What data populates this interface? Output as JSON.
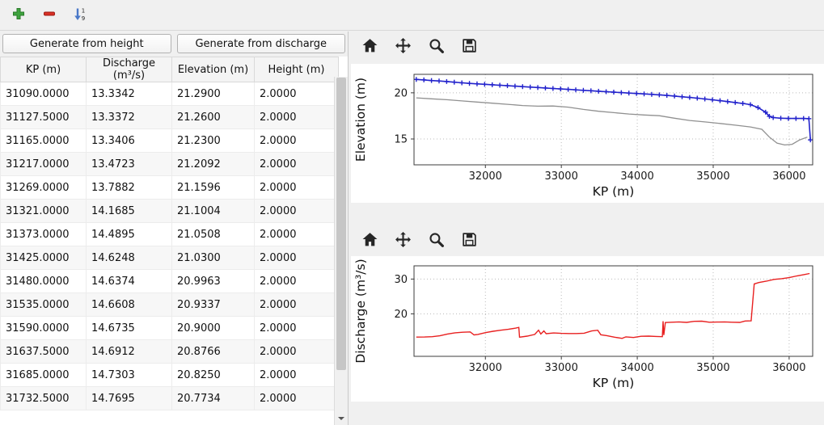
{
  "colors": {
    "window_bg": "#f0f0f0",
    "accent_blue": "#2323cc",
    "line_gray": "#909090",
    "line_red": "#e82020",
    "toolbar_icon": "#262626",
    "plus_green": "#3fa33f",
    "minus_red": "#d93025",
    "sort_blue": "#4a78c8"
  },
  "main_toolbar": {
    "buttons": [
      {
        "name": "add",
        "icon": "plus-icon"
      },
      {
        "name": "remove",
        "icon": "minus-icon"
      },
      {
        "name": "sort",
        "icon": "sort-numeric-icon"
      }
    ],
    "sort_digits": [
      "1",
      "9"
    ]
  },
  "left_panel": {
    "buttons": [
      {
        "label": "Generate from height"
      },
      {
        "label": "Generate from discharge"
      }
    ],
    "table": {
      "columns": [
        "KP (m)",
        "Discharge (m³/s)",
        "Elevation (m)",
        "Height (m)"
      ],
      "rows": [
        [
          "31090.0000",
          "13.3342",
          "21.2900",
          "2.0000"
        ],
        [
          "31127.5000",
          "13.3372",
          "21.2600",
          "2.0000"
        ],
        [
          "31165.0000",
          "13.3406",
          "21.2300",
          "2.0000"
        ],
        [
          "31217.0000",
          "13.4723",
          "21.2092",
          "2.0000"
        ],
        [
          "31269.0000",
          "13.7882",
          "21.1596",
          "2.0000"
        ],
        [
          "31321.0000",
          "14.1685",
          "21.1004",
          "2.0000"
        ],
        [
          "31373.0000",
          "14.4895",
          "21.0508",
          "2.0000"
        ],
        [
          "31425.0000",
          "14.6248",
          "21.0300",
          "2.0000"
        ],
        [
          "31480.0000",
          "14.6374",
          "20.9963",
          "2.0000"
        ],
        [
          "31535.0000",
          "14.6608",
          "20.9337",
          "2.0000"
        ],
        [
          "31590.0000",
          "14.6735",
          "20.9000",
          "2.0000"
        ],
        [
          "31637.5000",
          "14.6912",
          "20.8766",
          "2.0000"
        ],
        [
          "31685.0000",
          "14.7303",
          "20.8250",
          "2.0000"
        ],
        [
          "31732.5000",
          "14.7695",
          "20.7734",
          "2.0000"
        ]
      ]
    }
  },
  "plot_toolbar_icons": [
    "home",
    "pan",
    "zoom",
    "save"
  ],
  "chart_data": [
    {
      "type": "line",
      "title": "",
      "xlabel": "KP (m)",
      "ylabel": "Elevation (m)",
      "xlim": [
        31060,
        36310
      ],
      "ylim": [
        12.2,
        22.0
      ],
      "xticks": [
        32000,
        33000,
        34000,
        35000,
        36000
      ],
      "yticks": [
        15,
        20
      ],
      "grid": true,
      "legend": false,
      "series": [
        {
          "name": "elevation-markers",
          "color": "#2323cc",
          "marker": "+",
          "width": 1.6,
          "points": [
            [
              31090,
              21.45
            ],
            [
              31190,
              21.4
            ],
            [
              31290,
              21.33
            ],
            [
              31390,
              21.28
            ],
            [
              31490,
              21.22
            ],
            [
              31590,
              21.15
            ],
            [
              31690,
              21.08
            ],
            [
              31790,
              21.02
            ],
            [
              31890,
              20.97
            ],
            [
              31990,
              20.92
            ],
            [
              32090,
              20.87
            ],
            [
              32190,
              20.82
            ],
            [
              32290,
              20.77
            ],
            [
              32390,
              20.72
            ],
            [
              32490,
              20.67
            ],
            [
              32590,
              20.62
            ],
            [
              32690,
              20.57
            ],
            [
              32790,
              20.52
            ],
            [
              32890,
              20.47
            ],
            [
              32990,
              20.42
            ],
            [
              33090,
              20.37
            ],
            [
              33190,
              20.32
            ],
            [
              33290,
              20.27
            ],
            [
              33390,
              20.22
            ],
            [
              33490,
              20.17
            ],
            [
              33590,
              20.12
            ],
            [
              33690,
              20.07
            ],
            [
              33790,
              20.02
            ],
            [
              33890,
              19.97
            ],
            [
              33990,
              19.93
            ],
            [
              34090,
              19.88
            ],
            [
              34190,
              19.83
            ],
            [
              34290,
              19.78
            ],
            [
              34390,
              19.72
            ],
            [
              34490,
              19.65
            ],
            [
              34590,
              19.57
            ],
            [
              34690,
              19.5
            ],
            [
              34790,
              19.42
            ],
            [
              34890,
              19.33
            ],
            [
              34990,
              19.24
            ],
            [
              35090,
              19.15
            ],
            [
              35190,
              19.05
            ],
            [
              35290,
              18.95
            ],
            [
              35390,
              18.85
            ],
            [
              35490,
              18.72
            ],
            [
              35590,
              18.4
            ],
            [
              35690,
              17.9
            ],
            [
              35740,
              17.45
            ],
            [
              35790,
              17.32
            ],
            [
              35890,
              17.25
            ],
            [
              35990,
              17.22
            ],
            [
              36090,
              17.22
            ],
            [
              36190,
              17.22
            ],
            [
              36260,
              17.2
            ],
            [
              36280,
              14.9
            ]
          ]
        },
        {
          "name": "second-line",
          "color": "#909090",
          "marker": null,
          "width": 1.3,
          "points": [
            [
              31090,
              19.45
            ],
            [
              31290,
              19.35
            ],
            [
              31490,
              19.25
            ],
            [
              31690,
              19.12
            ],
            [
              31890,
              19.0
            ],
            [
              32090,
              18.88
            ],
            [
              32290,
              18.75
            ],
            [
              32490,
              18.62
            ],
            [
              32690,
              18.55
            ],
            [
              32890,
              18.57
            ],
            [
              33090,
              18.45
            ],
            [
              33290,
              18.2
            ],
            [
              33490,
              18.0
            ],
            [
              33690,
              17.85
            ],
            [
              33890,
              17.7
            ],
            [
              34090,
              17.6
            ],
            [
              34290,
              17.52
            ],
            [
              34490,
              17.25
            ],
            [
              34690,
              17.0
            ],
            [
              34890,
              16.85
            ],
            [
              35090,
              16.68
            ],
            [
              35290,
              16.5
            ],
            [
              35490,
              16.3
            ],
            [
              35640,
              16.05
            ],
            [
              35740,
              15.2
            ],
            [
              35840,
              14.55
            ],
            [
              35940,
              14.35
            ],
            [
              36040,
              14.42
            ],
            [
              36140,
              14.9
            ],
            [
              36240,
              15.2
            ]
          ]
        }
      ]
    },
    {
      "type": "line",
      "title": "",
      "xlabel": "KP (m)",
      "ylabel": "Discharge (m³/s)",
      "xlim": [
        31060,
        36310
      ],
      "ylim": [
        7.8,
        33.8
      ],
      "xticks": [
        32000,
        33000,
        34000,
        35000,
        36000
      ],
      "yticks": [
        20,
        30
      ],
      "grid": true,
      "legend": false,
      "series": [
        {
          "name": "discharge",
          "color": "#e82020",
          "marker": null,
          "width": 1.4,
          "points": [
            [
              31090,
              13.33
            ],
            [
              31200,
              13.34
            ],
            [
              31300,
              13.45
            ],
            [
              31400,
              13.7
            ],
            [
              31500,
              14.2
            ],
            [
              31600,
              14.55
            ],
            [
              31700,
              14.72
            ],
            [
              31800,
              14.8
            ],
            [
              31850,
              13.95
            ],
            [
              31900,
              14.1
            ],
            [
              32000,
              14.6
            ],
            [
              32100,
              15.0
            ],
            [
              32200,
              15.3
            ],
            [
              32300,
              15.55
            ],
            [
              32400,
              15.9
            ],
            [
              32440,
              16.1
            ],
            [
              32450,
              13.3
            ],
            [
              32550,
              13.6
            ],
            [
              32650,
              14.1
            ],
            [
              32700,
              15.3
            ],
            [
              32730,
              14.2
            ],
            [
              32770,
              15.1
            ],
            [
              32800,
              14.3
            ],
            [
              32900,
              14.5
            ],
            [
              33000,
              14.4
            ],
            [
              33100,
              14.35
            ],
            [
              33200,
              14.35
            ],
            [
              33300,
              14.45
            ],
            [
              33400,
              15.1
            ],
            [
              33480,
              15.3
            ],
            [
              33520,
              14.0
            ],
            [
              33600,
              13.75
            ],
            [
              33700,
              13.3
            ],
            [
              33800,
              12.95
            ],
            [
              33850,
              13.4
            ],
            [
              33950,
              13.2
            ],
            [
              34050,
              13.55
            ],
            [
              34150,
              13.6
            ],
            [
              34250,
              13.5
            ],
            [
              34330,
              13.45
            ],
            [
              34340,
              17.9
            ],
            [
              34350,
              13.9
            ],
            [
              34370,
              17.5
            ],
            [
              34450,
              17.6
            ],
            [
              34550,
              17.7
            ],
            [
              34650,
              17.55
            ],
            [
              34750,
              17.85
            ],
            [
              34850,
              17.9
            ],
            [
              34950,
              17.6
            ],
            [
              35050,
              17.65
            ],
            [
              35150,
              17.7
            ],
            [
              35250,
              17.6
            ],
            [
              35350,
              17.55
            ],
            [
              35420,
              17.95
            ],
            [
              35500,
              18.0
            ],
            [
              35540,
              28.6
            ],
            [
              35600,
              29.0
            ],
            [
              35700,
              29.4
            ],
            [
              35800,
              29.9
            ],
            [
              35900,
              30.1
            ],
            [
              36000,
              30.4
            ],
            [
              36100,
              30.9
            ],
            [
              36200,
              31.3
            ],
            [
              36270,
              31.6
            ]
          ]
        }
      ]
    }
  ]
}
